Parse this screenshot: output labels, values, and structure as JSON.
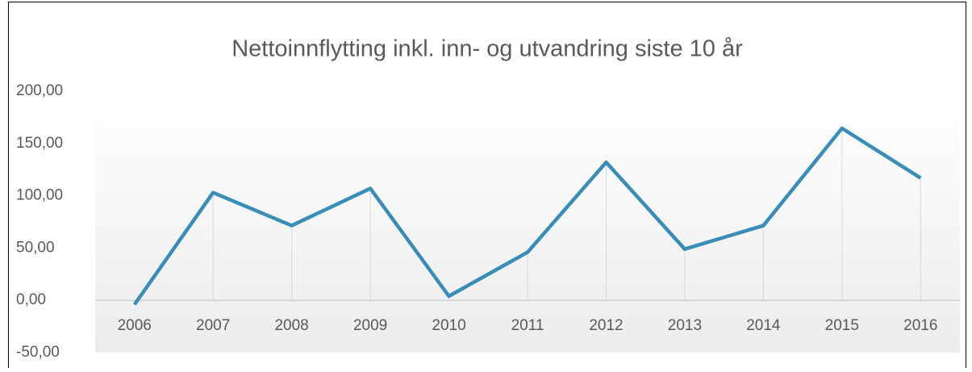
{
  "chart_data": {
    "type": "line",
    "title": "Nettoinnflytting inkl. inn- og utvandring siste 10 år",
    "categories": [
      "2006",
      "2007",
      "2008",
      "2009",
      "2010",
      "2011",
      "2012",
      "2013",
      "2014",
      "2015",
      "2016"
    ],
    "series": [
      {
        "name": "Nettoinnflytting",
        "color": "#3a8db6",
        "values": [
          -4,
          103,
          71.5,
          107,
          4,
          46,
          132,
          49,
          71.5,
          164.5,
          117
        ]
      }
    ],
    "ylim": [
      -50,
      200
    ],
    "yticks": [
      {
        "value": -50,
        "label": "-50,00"
      },
      {
        "value": 0,
        "label": "0,00"
      },
      {
        "value": 50,
        "label": "50,00"
      },
      {
        "value": 100,
        "label": "100,00"
      },
      {
        "value": 150,
        "label": "150,00"
      },
      {
        "value": 200,
        "label": "200,00"
      }
    ],
    "grid": false,
    "drop_lines": true
  }
}
